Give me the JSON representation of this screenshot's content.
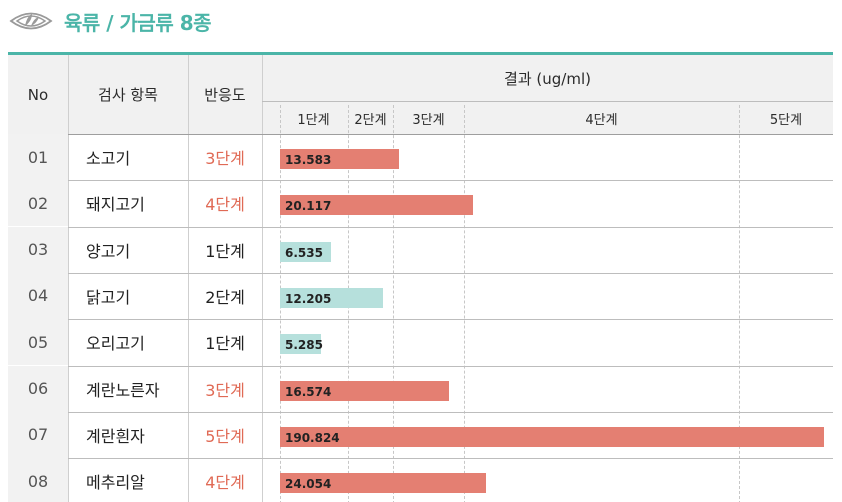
{
  "header": {
    "title": "육류 / 가금류 8종",
    "logo_icon": "eye-leaf-logo-icon"
  },
  "table": {
    "col_no": "No",
    "col_item": "검사 항목",
    "col_level": "반응도",
    "col_result": "결과 (ug/ml)",
    "stages": [
      "1단계",
      "2단계",
      "3단계",
      "4단계",
      "5단계"
    ]
  },
  "colors": {
    "accent": "#4bb5a8",
    "high": "#e47f72",
    "low": "#b6e0dc",
    "high_text": "#e06a55",
    "low_text": "#222222"
  },
  "chart_data": {
    "type": "bar",
    "orientation": "horizontal",
    "title": "육류 / 가금류 8종",
    "xlabel": "결과 (ug/ml)",
    "categories": [
      "소고기",
      "돼지고기",
      "양고기",
      "닭고기",
      "오리고기",
      "계란노른자",
      "계란흰자",
      "메추리알"
    ],
    "series": [
      {
        "values": [
          13.583,
          20.117,
          6.535,
          12.205,
          5.285,
          16.574,
          190.824,
          24.054
        ]
      }
    ],
    "rows": [
      {
        "no": "01",
        "item": "소고기",
        "level": "3단계",
        "value": 13.583,
        "label": "13.583",
        "high": true
      },
      {
        "no": "02",
        "item": "돼지고기",
        "level": "4단계",
        "value": 20.117,
        "label": "20.117",
        "high": true
      },
      {
        "no": "03",
        "item": "양고기",
        "level": "1단계",
        "value": 6.535,
        "label": "6.535",
        "high": false
      },
      {
        "no": "04",
        "item": "닭고기",
        "level": "2단계",
        "value": 12.205,
        "label": "12.205",
        "high": false
      },
      {
        "no": "05",
        "item": "오리고기",
        "level": "1단계",
        "value": 5.285,
        "label": "5.285",
        "high": false
      },
      {
        "no": "06",
        "item": "계란노른자",
        "level": "3단계",
        "value": 16.574,
        "label": "16.574",
        "high": true
      },
      {
        "no": "07",
        "item": "계란흰자",
        "level": "5단계",
        "value": 190.824,
        "label": "190.824",
        "high": true
      },
      {
        "no": "08",
        "item": "메추리알",
        "level": "4단계",
        "value": 24.054,
        "label": "24.054",
        "high": true
      }
    ],
    "stage_breaks": [
      0,
      8.7,
      13.2,
      17.5,
      100,
      200
    ],
    "grid": true
  }
}
